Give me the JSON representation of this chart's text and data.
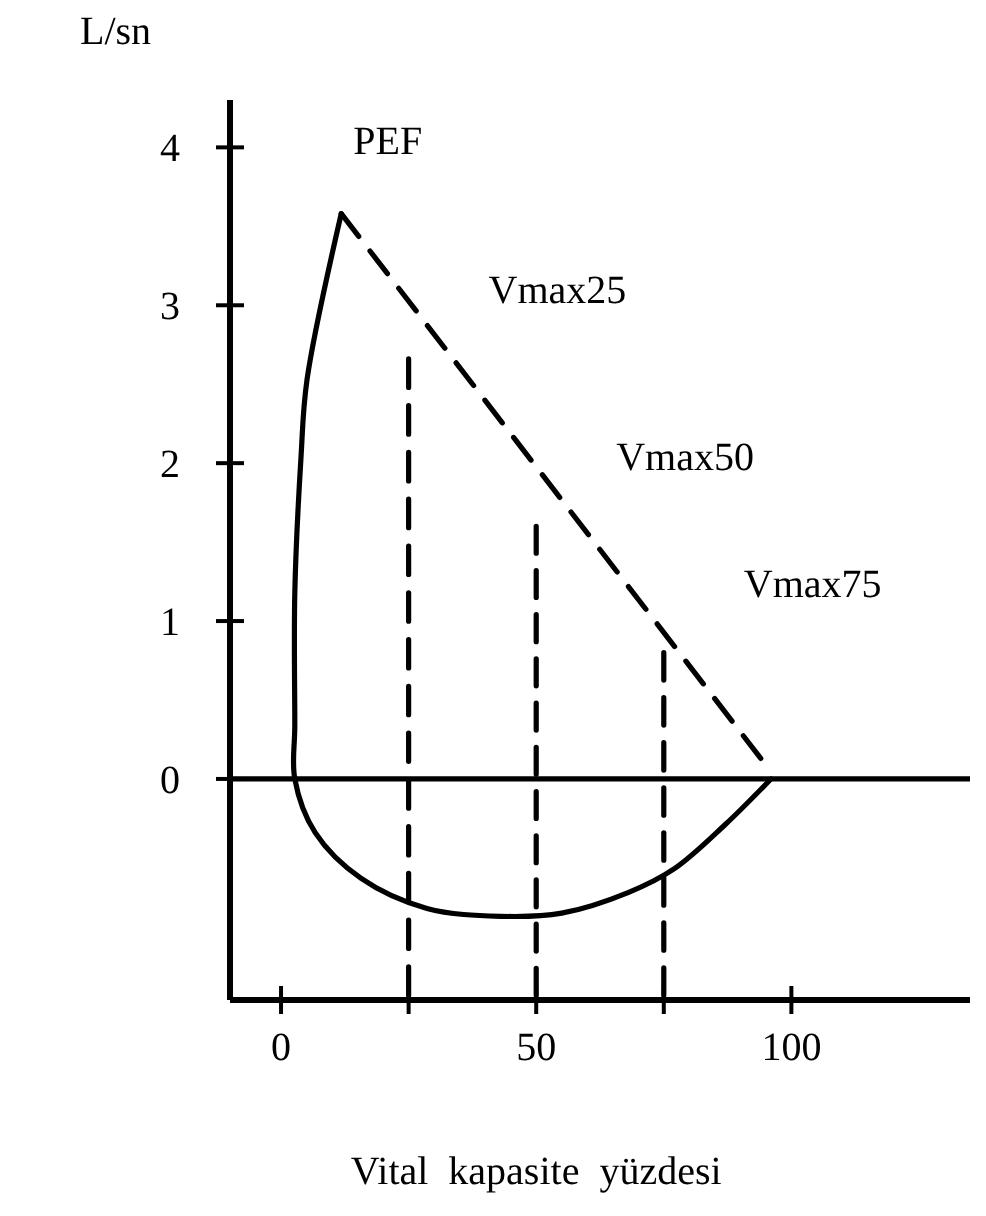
{
  "chart_data": {
    "type": "line",
    "ylabel": "L/sn",
    "xlabel": "Vital  kapasite  yüzdesi",
    "xlim": [
      -10,
      135
    ],
    "ylim": [
      -1.4,
      4.3
    ],
    "xticks": [
      0,
      {
        "value": 25,
        "label": null
      },
      50,
      {
        "value": 75,
        "label": null
      },
      100
    ],
    "yticks": [
      0,
      1,
      2,
      3,
      4
    ],
    "grid": false,
    "marker": "none",
    "series": [
      {
        "color": "#000000",
        "line_style": "solid",
        "x": [
          96,
          87,
          77,
          68,
          55,
          43,
          28.6,
          15.7,
          6.7,
          2.7,
          2.7,
          2.7,
          3.9,
          5.1,
          11.8
        ],
        "values": [
          0,
          -0.29,
          -0.57,
          -0.72,
          -0.85,
          -0.87,
          -0.82,
          -0.63,
          -0.34,
          0,
          0.34,
          1.18,
          2.03,
          2.53,
          3.58
        ]
      },
      {
        "color": "#000000",
        "line_style": "dashed",
        "x": [
          11.8,
          94
        ],
        "values": [
          3.58,
          0.13
        ]
      },
      {
        "color": "#000000",
        "line_style": "dashed",
        "x": [
          25,
          25
        ],
        "values": [
          -1.37,
          2.66
        ]
      },
      {
        "color": "#000000",
        "line_style": "dashed",
        "x": [
          50,
          50
        ],
        "values": [
          -1.37,
          1.6
        ]
      },
      {
        "color": "#000000",
        "line_style": "dashed",
        "x": [
          75,
          75
        ],
        "values": [
          -1.37,
          0.8
        ]
      }
    ],
    "ref_lines": [
      {
        "axis": "y",
        "value": 0,
        "color": "#000000",
        "line_style": "solid"
      }
    ],
    "annotations": [
      {
        "text": "PEF",
        "x": 11.8,
        "y": 3.58
      },
      {
        "text": "Vmax25",
        "x": 25,
        "y": 2.66
      },
      {
        "text": "Vmax50",
        "x": 50,
        "y": 1.6
      },
      {
        "text": "Vmax75",
        "x": 75,
        "y": 0.8
      }
    ]
  }
}
